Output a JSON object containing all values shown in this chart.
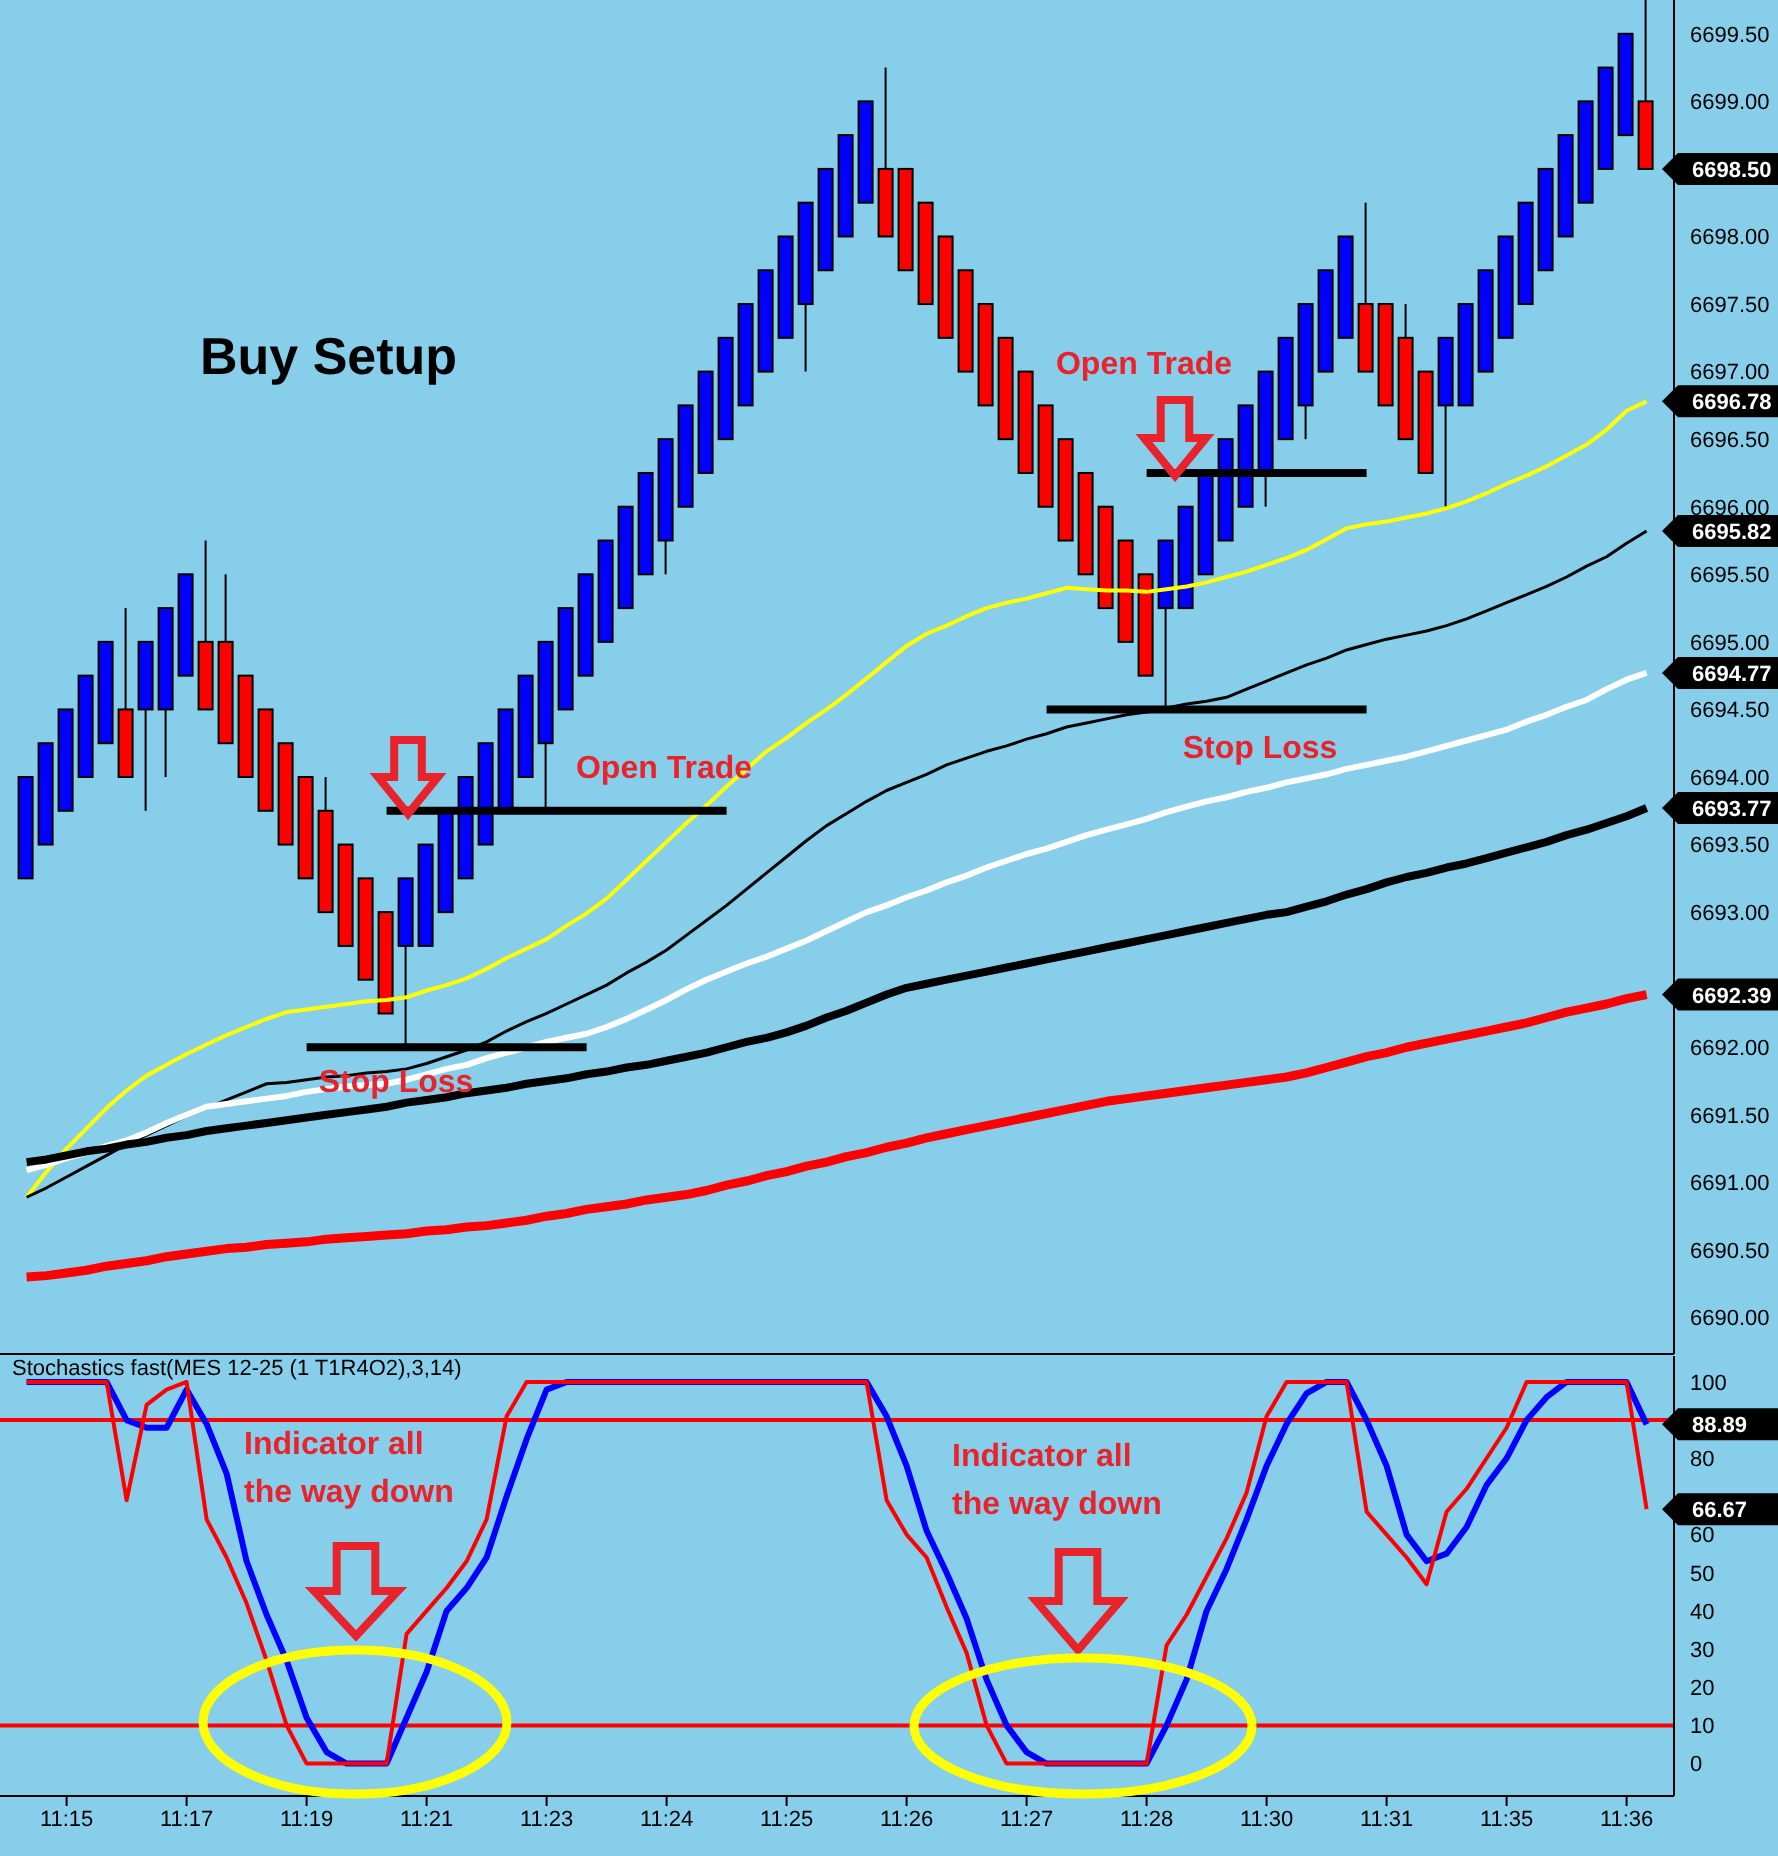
{
  "chart_data": [
    {
      "type": "candlestick",
      "title": "Buy Setup",
      "tick_labels": "y",
      "categories": [
        null,
        null,
        null,
        null,
        null,
        null,
        null,
        null,
        null,
        null,
        null,
        null,
        null,
        null,
        null,
        null,
        null,
        null,
        null,
        null,
        null,
        null,
        null,
        null,
        null,
        null,
        null,
        null,
        null,
        null,
        null,
        null,
        null,
        null,
        null,
        null,
        null,
        null,
        null,
        null,
        null,
        null,
        null,
        null,
        null,
        null,
        null,
        null,
        null,
        null,
        null,
        null,
        null,
        null,
        null,
        null,
        null,
        null,
        null,
        null,
        null,
        null,
        null,
        null,
        null,
        null,
        null,
        null,
        null,
        null,
        null,
        null,
        null,
        null,
        null,
        null,
        null,
        null,
        null,
        null,
        null,
        null
      ],
      "ohlc": [
        [
          6693.25,
          6694,
          6693.25,
          6694
        ],
        [
          6693.5,
          6694.25,
          6693.5,
          6694.25
        ],
        [
          6693.75,
          6694.5,
          6693.75,
          6694.5
        ],
        [
          6694,
          6694.75,
          6694,
          6694.75
        ],
        [
          6694.25,
          6695,
          6694.25,
          6695
        ],
        [
          6694.5,
          6695.25,
          6694,
          6694
        ],
        [
          6694.5,
          6695,
          6693.75,
          6695
        ],
        [
          6694.5,
          6695.25,
          6694,
          6695.25
        ],
        [
          6694.75,
          6695.5,
          6694.75,
          6695.5
        ],
        [
          6695,
          6695.75,
          6694.5,
          6694.5
        ],
        [
          6695,
          6695.5,
          6694.25,
          6694.25
        ],
        [
          6694.75,
          6694.75,
          6694,
          6694
        ],
        [
          6694.5,
          6694.5,
          6693.75,
          6693.75
        ],
        [
          6694.25,
          6694.25,
          6693.5,
          6693.5
        ],
        [
          6694,
          6694,
          6693.25,
          6693.25
        ],
        [
          6693.75,
          6694,
          6693,
          6693
        ],
        [
          6693.5,
          6693.5,
          6692.75,
          6692.75
        ],
        [
          6693.25,
          6693.25,
          6692.5,
          6692.5
        ],
        [
          6693,
          6693,
          6692.25,
          6692.25
        ],
        [
          6692.75,
          6693.25,
          6692,
          6693.25
        ],
        [
          6692.75,
          6693.5,
          6692.75,
          6693.5
        ],
        [
          6693,
          6693.75,
          6693,
          6693.75
        ],
        [
          6693.25,
          6694,
          6693.25,
          6694
        ],
        [
          6693.5,
          6694.25,
          6693.5,
          6694.25
        ],
        [
          6693.75,
          6694.5,
          6693.75,
          6694.5
        ],
        [
          6694,
          6694.75,
          6694,
          6694.75
        ],
        [
          6694.25,
          6695,
          6693.75,
          6695
        ],
        [
          6694.5,
          6695.25,
          6694.5,
          6695.25
        ],
        [
          6694.75,
          6695.5,
          6694.75,
          6695.5
        ],
        [
          6695,
          6695.75,
          6695,
          6695.75
        ],
        [
          6695.25,
          6696,
          6695.25,
          6696
        ],
        [
          6695.5,
          6696.25,
          6695.5,
          6696.25
        ],
        [
          6695.75,
          6696.5,
          6695.5,
          6696.5
        ],
        [
          6696,
          6696.75,
          6696,
          6696.75
        ],
        [
          6696.25,
          6697,
          6696.25,
          6697
        ],
        [
          6696.5,
          6697.25,
          6696.5,
          6697.25
        ],
        [
          6696.75,
          6697.5,
          6696.75,
          6697.5
        ],
        [
          6697,
          6697.75,
          6697,
          6697.75
        ],
        [
          6697.25,
          6698,
          6697.25,
          6698
        ],
        [
          6697.5,
          6698.25,
          6697,
          6698.25
        ],
        [
          6697.75,
          6698.5,
          6697.75,
          6698.5
        ],
        [
          6698,
          6698.75,
          6698,
          6698.75
        ],
        [
          6698.25,
          6699,
          6698.25,
          6699
        ],
        [
          6698.5,
          6699.25,
          6698,
          6698
        ],
        [
          6698.5,
          6698.5,
          6697.75,
          6697.75
        ],
        [
          6698.25,
          6698.25,
          6697.5,
          6697.5
        ],
        [
          6698,
          6698,
          6697.25,
          6697.25
        ],
        [
          6697.75,
          6697.75,
          6697,
          6697
        ],
        [
          6697.5,
          6697.5,
          6696.75,
          6696.75
        ],
        [
          6697.25,
          6697.25,
          6696.5,
          6696.5
        ],
        [
          6697,
          6697,
          6696.25,
          6696.25
        ],
        [
          6696.75,
          6696.75,
          6696,
          6696
        ],
        [
          6696.5,
          6696.5,
          6695.75,
          6695.75
        ],
        [
          6696.25,
          6696.25,
          6695.5,
          6695.5
        ],
        [
          6696,
          6696,
          6695.25,
          6695.25
        ],
        [
          6695.75,
          6695.75,
          6695,
          6695
        ],
        [
          6695.5,
          6695.5,
          6694.75,
          6694.75
        ],
        [
          6695.25,
          6695.75,
          6694.5,
          6695.75
        ],
        [
          6695.25,
          6696,
          6695.25,
          6696
        ],
        [
          6695.5,
          6696.25,
          6695.5,
          6696.25
        ],
        [
          6695.75,
          6696.5,
          6695.75,
          6696.5
        ],
        [
          6696,
          6696.75,
          6696,
          6696.75
        ],
        [
          6696.25,
          6697,
          6696,
          6697
        ],
        [
          6696.5,
          6697.25,
          6696.5,
          6697.25
        ],
        [
          6696.75,
          6697.5,
          6696.5,
          6697.5
        ],
        [
          6697,
          6697.75,
          6697,
          6697.75
        ],
        [
          6697.25,
          6698,
          6697.25,
          6698
        ],
        [
          6697.5,
          6698.25,
          6697,
          6697
        ],
        [
          6697.5,
          6697.5,
          6696.75,
          6696.75
        ],
        [
          6697.25,
          6697.5,
          6696.5,
          6696.5
        ],
        [
          6697,
          6697,
          6696.25,
          6696.25
        ],
        [
          6696.75,
          6697.25,
          6696,
          6697.25
        ],
        [
          6696.75,
          6697.5,
          6696.75,
          6697.5
        ],
        [
          6697,
          6697.75,
          6697,
          6697.75
        ],
        [
          6697.25,
          6698,
          6697.25,
          6698
        ],
        [
          6697.5,
          6698.25,
          6697.5,
          6698.25
        ],
        [
          6697.75,
          6698.5,
          6697.75,
          6698.5
        ],
        [
          6698,
          6698.75,
          6698,
          6698.75
        ],
        [
          6698.25,
          6699,
          6698.25,
          6699
        ],
        [
          6698.5,
          6699.25,
          6698.5,
          6699.25
        ],
        [
          6698.75,
          6699.5,
          6698.75,
          6699.5
        ],
        [
          6699,
          6699.75,
          6698.5,
          6698.5
        ]
      ],
      "colors": [
        "#0000ff",
        "#0000ff",
        "#0000ff",
        "#0000ff",
        "#0000ff",
        "#ff0000",
        "#0000ff",
        "#0000ff",
        "#0000ff",
        "#ff0000",
        "#ff0000",
        "#ff0000",
        "#ff0000",
        "#ff0000",
        "#ff0000",
        "#ff0000",
        "#ff0000",
        "#ff0000",
        "#ff0000",
        "#0000ff",
        "#0000ff",
        "#0000ff",
        "#0000ff",
        "#0000ff",
        "#0000ff",
        "#0000ff",
        "#0000ff",
        "#0000ff",
        "#0000ff",
        "#0000ff",
        "#0000ff",
        "#0000ff",
        "#0000ff",
        "#0000ff",
        "#0000ff",
        "#0000ff",
        "#0000ff",
        "#0000ff",
        "#0000ff",
        "#0000ff",
        "#0000ff",
        "#0000ff",
        "#0000ff",
        "#ff0000",
        "#ff0000",
        "#ff0000",
        "#ff0000",
        "#ff0000",
        "#ff0000",
        "#ff0000",
        "#ff0000",
        "#ff0000",
        "#ff0000",
        "#ff0000",
        "#ff0000",
        "#ff0000",
        "#ff0000",
        "#0000ff",
        "#0000ff",
        "#0000ff",
        "#0000ff",
        "#0000ff",
        "#0000ff",
        "#0000ff",
        "#0000ff",
        "#0000ff",
        "#0000ff",
        "#ff0000",
        "#ff0000",
        "#ff0000",
        "#ff0000",
        "#0000ff",
        "#0000ff",
        "#0000ff",
        "#0000ff",
        "#0000ff",
        "#0000ff",
        "#0000ff",
        "#0000ff",
        "#0000ff",
        "#0000ff",
        "#ff0000"
      ],
      "series": [
        {
          "type": "line",
          "color": "#ffff00",
          "values": [
            6690.89,
            6691.08,
            6691.25,
            6691.4,
            6691.55,
            6691.68,
            6691.79,
            6691.87,
            6691.95,
            6692.02,
            6692.09,
            6692.15,
            6692.21,
            6692.26,
            6692.28,
            6692.3,
            6692.32,
            6692.34,
            6692.35,
            6692.37,
            6692.42,
            6692.46,
            6692.51,
            6692.58,
            6692.66,
            6692.73,
            6692.8,
            6692.9,
            6692.99,
            6693.1,
            6693.24,
            6693.38,
            6693.52,
            6693.66,
            6693.79,
            6693.93,
            6694.06,
            6694.19,
            6694.29,
            6694.4,
            6694.5,
            6694.61,
            6694.73,
            6694.85,
            6694.97,
            6695.06,
            6695.12,
            6695.19,
            6695.25,
            6695.29,
            6695.32,
            6695.36,
            6695.4,
            6695.39,
            6695.38,
            6695.38,
            6695.37,
            6695.39,
            6695.41,
            6695.44,
            6695.48,
            6695.52,
            6695.57,
            6695.62,
            6695.68,
            6695.76,
            6695.84,
            6695.87,
            6695.89,
            6695.92,
            6695.95,
            6695.99,
            6696.04,
            6696.1,
            6696.17,
            6696.23,
            6696.3,
            6696.38,
            6696.46,
            6696.57,
            6696.71,
            6696.78
          ]
        },
        {
          "type": "line",
          "color": "#000000",
          "values": [
            6690.89,
            6690.96,
            6691.04,
            6691.12,
            6691.2,
            6691.28,
            6691.35,
            6691.42,
            6691.49,
            6691.55,
            6691.61,
            6691.67,
            6691.73,
            6691.74,
            6691.76,
            6691.78,
            6691.79,
            6691.81,
            6691.82,
            6691.84,
            6691.88,
            6691.93,
            6691.98,
            6692.04,
            6692.12,
            6692.19,
            6692.25,
            6692.32,
            6692.39,
            6692.46,
            6692.55,
            6692.63,
            6692.72,
            6692.83,
            6692.94,
            6693.05,
            6693.17,
            6693.29,
            6693.41,
            6693.53,
            6693.64,
            6693.73,
            6693.82,
            6693.9,
            6693.96,
            6694.02,
            6694.09,
            6694.14,
            6694.19,
            6694.23,
            6694.28,
            6694.32,
            6694.37,
            6694.4,
            6694.43,
            6694.46,
            6694.48,
            6694.51,
            6694.54,
            6694.56,
            6694.59,
            6694.65,
            6694.71,
            6694.77,
            6694.83,
            6694.88,
            6694.94,
            6694.98,
            6695.02,
            6695.05,
            6695.08,
            6695.12,
            6695.17,
            6695.23,
            6695.29,
            6695.35,
            6695.41,
            6695.48,
            6695.56,
            6695.63,
            6695.73,
            6695.82
          ]
        },
        {
          "type": "line",
          "color": "#ffffff",
          "values": [
            6691.09,
            6691.13,
            6691.18,
            6691.22,
            6691.27,
            6691.31,
            6691.37,
            6691.44,
            6691.5,
            6691.56,
            6691.58,
            6691.6,
            6691.62,
            6691.64,
            6691.67,
            6691.69,
            6691.71,
            6691.72,
            6691.73,
            6691.76,
            6691.8,
            6691.84,
            6691.87,
            6691.92,
            6691.96,
            6692.0,
            6692.04,
            6692.07,
            6692.1,
            6692.15,
            6692.21,
            6692.28,
            6692.35,
            6692.43,
            6692.5,
            6692.56,
            6692.62,
            6692.67,
            6692.73,
            6692.79,
            6692.86,
            6692.93,
            6693.0,
            6693.05,
            6693.11,
            6693.16,
            6693.22,
            6693.27,
            6693.33,
            6693.38,
            6693.43,
            6693.47,
            6693.52,
            6693.57,
            6693.61,
            6693.65,
            6693.69,
            6693.74,
            6693.78,
            6693.82,
            6693.85,
            6693.89,
            6693.92,
            6693.96,
            6693.99,
            6694.02,
            6694.06,
            6694.09,
            6694.12,
            6694.15,
            6694.19,
            6694.23,
            6694.27,
            6694.31,
            6694.35,
            6694.41,
            6694.46,
            6694.52,
            6694.57,
            6694.65,
            6694.72,
            6694.77
          ]
        },
        {
          "type": "line",
          "color": "#000000",
          "values": [
            6691.15,
            6691.17,
            6691.2,
            6691.23,
            6691.25,
            6691.28,
            6691.3,
            6691.33,
            6691.35,
            6691.38,
            6691.4,
            6691.42,
            6691.44,
            6691.46,
            6691.48,
            6691.5,
            6691.52,
            6691.54,
            6691.56,
            6691.59,
            6691.61,
            6691.63,
            6691.66,
            6691.68,
            6691.7,
            6691.73,
            6691.75,
            6691.77,
            6691.8,
            6691.82,
            6691.85,
            6691.87,
            6691.9,
            6691.93,
            6691.96,
            6692.0,
            6692.04,
            6692.07,
            6692.11,
            6692.16,
            6692.22,
            6692.27,
            6692.33,
            6692.39,
            6692.44,
            6692.47,
            6692.5,
            6692.53,
            6692.56,
            6692.59,
            6692.62,
            6692.65,
            6692.68,
            6692.71,
            6692.74,
            6692.77,
            6692.8,
            6692.83,
            6692.86,
            6692.89,
            6692.92,
            6692.95,
            6692.98,
            6693.0,
            6693.04,
            6693.08,
            6693.13,
            6693.17,
            6693.22,
            6693.26,
            6693.29,
            6693.33,
            6693.36,
            6693.4,
            6693.44,
            6693.48,
            6693.52,
            6693.57,
            6693.61,
            6693.66,
            6693.71,
            6693.77
          ]
        },
        {
          "type": "line",
          "color": "#ff0000",
          "values": [
            6690.3,
            6690.31,
            6690.33,
            6690.35,
            6690.38,
            6690.4,
            6690.42,
            6690.45,
            6690.47,
            6690.49,
            6690.51,
            6690.52,
            6690.54,
            6690.55,
            6690.56,
            6690.58,
            6690.59,
            6690.6,
            6690.61,
            6690.62,
            6690.64,
            6690.65,
            6690.67,
            6690.68,
            6690.7,
            6690.72,
            6690.75,
            6690.77,
            6690.8,
            6690.82,
            6690.84,
            6690.87,
            6690.89,
            6690.91,
            6690.94,
            6690.98,
            6691.01,
            6691.05,
            6691.08,
            6691.12,
            6691.15,
            6691.19,
            6691.22,
            6691.26,
            6691.29,
            6691.33,
            6691.36,
            6691.39,
            6691.42,
            6691.45,
            6691.48,
            6691.51,
            6691.54,
            6691.57,
            6691.6,
            6691.62,
            6691.64,
            6691.66,
            6691.68,
            6691.7,
            6691.72,
            6691.74,
            6691.76,
            6691.78,
            6691.81,
            6691.85,
            6691.89,
            6691.93,
            6691.96,
            6692.0,
            6692.03,
            6692.06,
            6692.09,
            6692.12,
            6692.15,
            6692.18,
            6692.22,
            6692.26,
            6692.29,
            6692.32,
            6692.36,
            6692.39
          ]
        },
        {
          "type": "line",
          "name": "Open Trade",
          "color": "#000000",
          "values": [
            null,
            null,
            null,
            null,
            null,
            null,
            null,
            null,
            null,
            null,
            null,
            null,
            null,
            null,
            null,
            null,
            null,
            null,
            6693.75,
            6693.75,
            6693.75,
            6693.75,
            6693.75,
            6693.75,
            6693.75,
            6693.75,
            6693.75,
            6693.75,
            6693.75,
            6693.75,
            6693.75,
            6693.75,
            6693.75,
            6693.75,
            6693.75,
            6693.75,
            null,
            null,
            null,
            null,
            null,
            null,
            null,
            null,
            null,
            null,
            null,
            null,
            null,
            null,
            null,
            null,
            null,
            null,
            null,
            null,
            null,
            null,
            null,
            null,
            null,
            null,
            null,
            null,
            null,
            null,
            null,
            null,
            null,
            null,
            null,
            null,
            null,
            null,
            null,
            null,
            null,
            null,
            null,
            null,
            null,
            null
          ]
        },
        {
          "type": "line",
          "name": "Stop Loss",
          "color": "#000000",
          "values": [
            null,
            null,
            null,
            null,
            null,
            null,
            null,
            null,
            null,
            null,
            null,
            null,
            null,
            null,
            6692,
            6692,
            6692,
            6692,
            6692,
            6692,
            6692,
            6692,
            6692,
            6692,
            6692,
            6692,
            6692,
            6692,
            6692,
            null,
            null,
            null,
            null,
            null,
            null,
            null,
            null,
            null,
            null,
            null,
            null,
            null,
            null,
            null,
            null,
            null,
            null,
            null,
            null,
            null,
            null,
            null,
            null,
            null,
            null,
            null,
            null,
            null,
            null,
            null,
            null,
            null,
            null,
            null,
            null,
            null,
            null,
            null,
            null,
            null,
            null,
            null,
            null,
            null,
            null,
            null,
            null,
            null,
            null,
            null,
            null,
            null
          ]
        },
        {
          "type": "line",
          "name": "Open Trade",
          "color": "#000000",
          "values": [
            null,
            null,
            null,
            null,
            null,
            null,
            null,
            null,
            null,
            null,
            null,
            null,
            null,
            null,
            null,
            null,
            null,
            null,
            null,
            null,
            null,
            null,
            null,
            null,
            null,
            null,
            null,
            null,
            null,
            null,
            null,
            null,
            null,
            null,
            null,
            null,
            null,
            null,
            null,
            null,
            null,
            null,
            null,
            null,
            null,
            null,
            null,
            null,
            null,
            null,
            null,
            null,
            null,
            null,
            null,
            null,
            6696.25,
            6696.25,
            6696.25,
            6696.25,
            6696.25,
            6696.25,
            6696.25,
            6696.25,
            6696.25,
            6696.25,
            6696.25,
            6696.25,
            null,
            null,
            null,
            null,
            null,
            null,
            null,
            null,
            null,
            null,
            null,
            null,
            null,
            null
          ]
        },
        {
          "type": "line",
          "name": "Stop Loss",
          "color": "#000000",
          "values": [
            null,
            null,
            null,
            null,
            null,
            null,
            null,
            null,
            null,
            null,
            null,
            null,
            null,
            null,
            null,
            null,
            null,
            null,
            null,
            null,
            null,
            null,
            null,
            null,
            null,
            null,
            null,
            null,
            null,
            null,
            null,
            null,
            null,
            null,
            null,
            null,
            null,
            null,
            null,
            null,
            null,
            null,
            null,
            null,
            null,
            null,
            null,
            null,
            null,
            null,
            null,
            6694.5,
            6694.5,
            6694.5,
            6694.5,
            6694.5,
            6694.5,
            6694.5,
            6694.5,
            6694.5,
            6694.5,
            6694.5,
            6694.5,
            6694.5,
            6694.5,
            6694.5,
            6694.5,
            6694.5,
            null,
            null,
            null,
            null,
            null,
            null,
            null,
            null,
            null,
            null,
            null,
            null,
            null,
            null
          ]
        }
      ],
      "ylim": [
        6689.73,
        6699.75
      ],
      "yticks": [
        {
          "value": 6690,
          "label": "6690.00"
        },
        {
          "value": 6690.5,
          "label": "6690.50"
        },
        {
          "value": 6691,
          "label": "6691.00"
        },
        {
          "value": 6691.5,
          "label": "6691.50"
        },
        {
          "value": 6692,
          "label": "6692.00"
        },
        {
          "value": 6693,
          "label": "6693.00"
        },
        {
          "value": 6693.5,
          "label": "6693.50"
        },
        {
          "value": 6694,
          "label": "6694.00"
        },
        {
          "value": 6694.5,
          "label": "6694.50"
        },
        {
          "value": 6695,
          "label": "6695.00"
        },
        {
          "value": 6695.5,
          "label": "6695.50"
        },
        {
          "value": 6696,
          "label": "6696.00"
        },
        {
          "value": 6696.5,
          "label": "6696.50"
        },
        {
          "value": 6697,
          "label": "6697.00"
        },
        {
          "value": 6697.5,
          "label": "6697.50"
        },
        {
          "value": 6698,
          "label": "6698.00"
        },
        {
          "value": 6699,
          "label": "6699.00"
        },
        {
          "value": 6699.5,
          "label": "6699.50"
        }
      ],
      "annotations": [
        "6698.50",
        "6696.78",
        "6695.82",
        "6694.77",
        "6693.77",
        "6692.39"
      ]
    },
    {
      "type": "line",
      "title": "Stochastics fast(MES 12-25 (1 T1R4O2),3,14)",
      "categories": [
        null,
        null,
        "11:15",
        null,
        null,
        null,
        null,
        null,
        "11:17",
        null,
        null,
        null,
        null,
        null,
        "11:19",
        null,
        null,
        null,
        null,
        null,
        "11:21",
        null,
        null,
        null,
        null,
        null,
        "11:23",
        null,
        null,
        null,
        null,
        null,
        "11:24",
        null,
        null,
        null,
        null,
        null,
        "11:25",
        null,
        null,
        null,
        null,
        null,
        "11:26",
        null,
        null,
        null,
        null,
        null,
        "11:27",
        null,
        null,
        null,
        null,
        null,
        "11:28",
        null,
        null,
        null,
        null,
        null,
        "11:30",
        null,
        null,
        null,
        null,
        null,
        "11:31",
        null,
        null,
        null,
        null,
        null,
        "11:35",
        null,
        null,
        null,
        null,
        null,
        "11:36",
        null
      ],
      "series": [
        {
          "color": "#0000ff",
          "values": [
            100,
            100,
            100,
            100,
            100,
            90,
            88,
            88,
            98,
            89,
            76,
            53,
            39,
            27,
            12,
            3,
            0,
            0,
            0,
            12,
            24,
            40,
            46,
            54,
            70,
            85,
            98,
            100,
            100,
            100,
            100,
            100,
            100,
            100,
            100,
            100,
            100,
            100,
            100,
            100,
            100,
            100,
            100,
            91,
            78,
            61,
            50,
            38,
            22,
            10,
            3,
            0,
            0,
            0,
            0,
            0,
            0,
            10,
            22,
            40,
            51,
            64,
            78,
            89,
            97,
            100,
            100,
            90,
            78,
            60,
            53,
            55,
            62,
            73,
            80,
            90,
            96,
            100,
            100,
            100,
            100,
            88.89
          ]
        },
        {
          "color": "#ff0000",
          "values": [
            100,
            100,
            100,
            100,
            100,
            69,
            94,
            98,
            100,
            64,
            54,
            42,
            27,
            10,
            0,
            0,
            0,
            0,
            0,
            34,
            40,
            46,
            53,
            64,
            91,
            100,
            100,
            100,
            100,
            100,
            100,
            100,
            100,
            100,
            100,
            100,
            100,
            100,
            100,
            100,
            100,
            100,
            100,
            69,
            60,
            54,
            41,
            29,
            10,
            0,
            0,
            0,
            0,
            0,
            0,
            0,
            0,
            31,
            39,
            49,
            59,
            71,
            91,
            100,
            100,
            100,
            100,
            66,
            60,
            54,
            47,
            66,
            72,
            80,
            88,
            100,
            100,
            100,
            100,
            100,
            100,
            66.67
          ]
        }
      ],
      "ylim": [
        -8.5,
        106.8
      ],
      "yticks": [
        0,
        10,
        20,
        30,
        40,
        50,
        60,
        80,
        100
      ],
      "ref_lines": [
        {
          "axis": "y",
          "value": 90,
          "color": "#ff0000"
        },
        {
          "axis": "y",
          "value": 10,
          "color": "#ff0000"
        }
      ],
      "annotations": [
        "88.89",
        "66.67",
        "Indicator all the way down",
        "Indicator all the way down"
      ]
    }
  ]
}
